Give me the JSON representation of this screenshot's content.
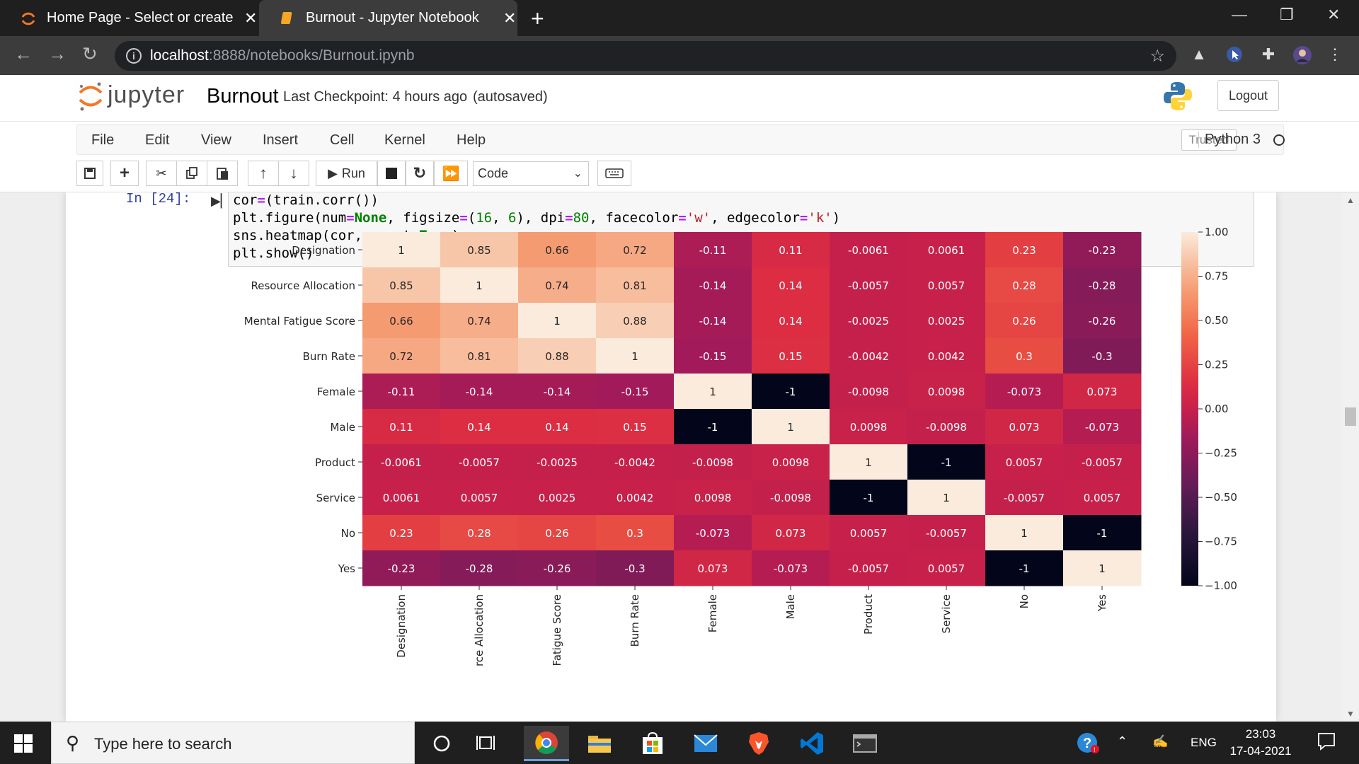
{
  "browser": {
    "tabs": [
      {
        "title": "Home Page - Select or create a n",
        "active": false
      },
      {
        "title": "Burnout - Jupyter Notebook",
        "active": true
      }
    ],
    "url_host": "localhost",
    "url_path": ":8888/notebooks/Burnout.ipynb"
  },
  "jupyter": {
    "logo_text": "jupyter",
    "notebook_name": "Burnout",
    "checkpoint": "Last Checkpoint: 4 hours ago",
    "autosave": "(autosaved)",
    "logout": "Logout",
    "menu": [
      "File",
      "Edit",
      "View",
      "Insert",
      "Cell",
      "Kernel",
      "Help"
    ],
    "trusted": "Trusted",
    "kernel": "Python 3",
    "run_label": "Run",
    "cell_type": "Code"
  },
  "cell": {
    "prompt": "In [24]:",
    "code_lines": [
      "cor=(train.corr())",
      "plt.figure(num=None, figsize=(16, 6), dpi=80, facecolor='w', edgecolor='k')",
      "sns.heatmap(cor, annot=True)",
      "plt.show()"
    ]
  },
  "chart_data": {
    "type": "heatmap",
    "title": "",
    "xlabel": "",
    "ylabel": "",
    "row_labels": [
      "Designation",
      "Resource Allocation",
      "Mental Fatigue Score",
      "Burn Rate",
      "Female",
      "Male",
      "Product",
      "Service",
      "No",
      "Yes"
    ],
    "col_labels_visible": [
      "Designation",
      "rce Allocation",
      "Fatigue Score",
      "Burn Rate",
      "Female",
      "Male",
      "Product",
      "Service",
      "No",
      "Yes"
    ],
    "values": [
      [
        1,
        0.85,
        0.66,
        0.72,
        -0.11,
        0.11,
        -0.0061,
        0.0061,
        0.23,
        -0.23
      ],
      [
        0.85,
        1,
        0.74,
        0.81,
        -0.14,
        0.14,
        -0.0057,
        0.0057,
        0.28,
        -0.28
      ],
      [
        0.66,
        0.74,
        1,
        0.88,
        -0.14,
        0.14,
        -0.0025,
        0.0025,
        0.26,
        -0.26
      ],
      [
        0.72,
        0.81,
        0.88,
        1,
        -0.15,
        0.15,
        -0.0042,
        0.0042,
        0.3,
        -0.3
      ],
      [
        -0.11,
        -0.14,
        -0.14,
        -0.15,
        1,
        -1,
        -0.0098,
        0.0098,
        -0.073,
        0.073
      ],
      [
        0.11,
        0.14,
        0.14,
        0.15,
        -1,
        1,
        0.0098,
        -0.0098,
        0.073,
        -0.073
      ],
      [
        -0.0061,
        -0.0057,
        -0.0025,
        -0.0042,
        -0.0098,
        0.0098,
        1,
        -1,
        0.0057,
        -0.0057
      ],
      [
        0.0061,
        0.0057,
        0.0025,
        0.0042,
        0.0098,
        -0.0098,
        -1,
        1,
        -0.0057,
        0.0057
      ],
      [
        0.23,
        0.28,
        0.26,
        0.3,
        -0.073,
        0.073,
        0.0057,
        -0.0057,
        1,
        -1
      ],
      [
        -0.23,
        -0.28,
        -0.26,
        -0.3,
        0.073,
        -0.073,
        -0.0057,
        0.0057,
        -1,
        1
      ]
    ],
    "annotations": [
      [
        "1",
        "0.85",
        "0.66",
        "0.72",
        "-0.11",
        "0.11",
        "-0.0061",
        "0.0061",
        "0.23",
        "-0.23"
      ],
      [
        "0.85",
        "1",
        "0.74",
        "0.81",
        "-0.14",
        "0.14",
        "-0.0057",
        "0.0057",
        "0.28",
        "-0.28"
      ],
      [
        "0.66",
        "0.74",
        "1",
        "0.88",
        "-0.14",
        "0.14",
        "-0.0025",
        "0.0025",
        "0.26",
        "-0.26"
      ],
      [
        "0.72",
        "0.81",
        "0.88",
        "1",
        "-0.15",
        "0.15",
        "-0.0042",
        "0.0042",
        "0.3",
        "-0.3"
      ],
      [
        "-0.11",
        "-0.14",
        "-0.14",
        "-0.15",
        "1",
        "-1",
        "-0.0098",
        "0.0098",
        "-0.073",
        "0.073"
      ],
      [
        "0.11",
        "0.14",
        "0.14",
        "0.15",
        "-1",
        "1",
        "0.0098",
        "-0.0098",
        "0.073",
        "-0.073"
      ],
      [
        "-0.0061",
        "-0.0057",
        "-0.0025",
        "-0.0042",
        "-0.0098",
        "0.0098",
        "1",
        "-1",
        "0.0057",
        "-0.0057"
      ],
      [
        "0.0061",
        "0.0057",
        "0.0025",
        "0.0042",
        "0.0098",
        "-0.0098",
        "-1",
        "1",
        "-0.0057",
        "0.0057"
      ],
      [
        "0.23",
        "0.28",
        "0.26",
        "0.3",
        "-0.073",
        "0.073",
        "0.0057",
        "-0.0057",
        "1",
        "-1"
      ],
      [
        "-0.23",
        "-0.28",
        "-0.26",
        "-0.3",
        "0.073",
        "-0.073",
        "-0.0057",
        "0.0057",
        "-1",
        "1"
      ]
    ],
    "colorbar": {
      "range": [
        -1.0,
        1.0
      ],
      "ticks": [
        "1.00",
        "0.75",
        "0.50",
        "0.25",
        "0.00",
        "−0.25",
        "−0.50",
        "−0.75",
        "−1.00"
      ],
      "colormap": "rocket"
    }
  },
  "taskbar": {
    "search_placeholder": "Type here to search",
    "language": "ENG",
    "time": "23:03",
    "date": "17-04-2021"
  },
  "colors": {
    "jupyter_orange": "#f37726",
    "prompt_blue": "#303f9f",
    "taskbar": "#1f1f1f"
  }
}
